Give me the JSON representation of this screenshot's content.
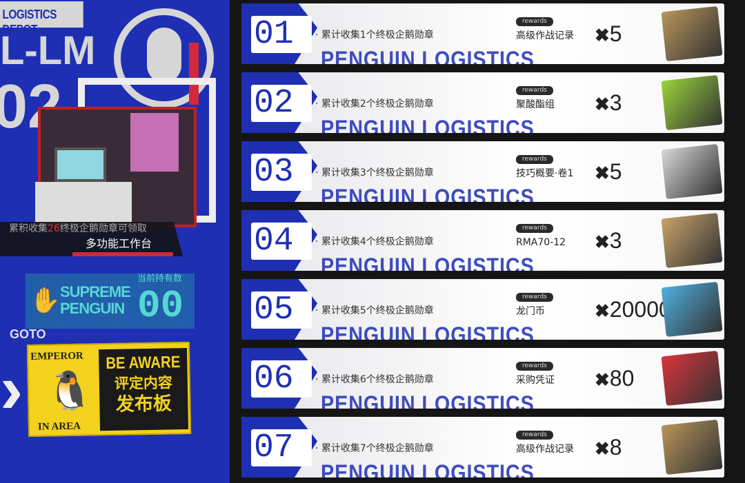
{
  "left_panel": {
    "depot_title": "LOGISTICS DEPOT",
    "logo_text_1": "L-LM",
    "logo_text_2": "02",
    "caption_prefix": "累积收集",
    "caption_count": "26",
    "caption_suffix": "终极企鹅勋章可领取",
    "caption_item": "多功能工作台",
    "supreme_label": "SUPREME PENGUIN",
    "held_label": "当前持有数",
    "held_count": "00",
    "goto_label": "GOTO",
    "sign": {
      "emperor": "EMPEROR",
      "in_area": "IN AREA",
      "be_aware": "BE AWARE",
      "line1": "评定内容",
      "line2": "发布板"
    }
  },
  "rewards_tag": "rewards",
  "watermark": "PENGUIN LOGISTICS",
  "tiers": [
    {
      "num": "01",
      "condition": "· 累计收集1个终极企鹅勋章",
      "item": "高级作战记录",
      "qty": "5",
      "color": "#b8955a"
    },
    {
      "num": "02",
      "condition": "· 累计收集2个终极企鹅勋章",
      "item": "聚酸酯组",
      "qty": "3",
      "color": "#9ad43a"
    },
    {
      "num": "03",
      "condition": "· 累计收集3个终极企鹅勋章",
      "item": "技巧概要·卷1",
      "qty": "5",
      "color": "#d8d8d8"
    },
    {
      "num": "04",
      "condition": "· 累计收集4个终极企鹅勋章",
      "item": "RMA70-12",
      "qty": "3",
      "color": "#c9a36a"
    },
    {
      "num": "05",
      "condition": "· 累计收集5个终极企鹅勋章",
      "item": "龙门币",
      "qty": "20000",
      "color": "#4fb0e0"
    },
    {
      "num": "06",
      "condition": "· 累计收集6个终极企鹅勋章",
      "item": "采购凭证",
      "qty": "80",
      "color": "#d8343c"
    },
    {
      "num": "07",
      "condition": "· 累计收集7个终极企鹅勋章",
      "item": "高级作战记录",
      "qty": "8",
      "color": "#b8955a"
    }
  ],
  "colors": {
    "brand_blue": "#1e2fb4",
    "accent_red": "#d3283a",
    "cyan": "#58e0d6",
    "sign_yellow": "#f2d21c"
  }
}
